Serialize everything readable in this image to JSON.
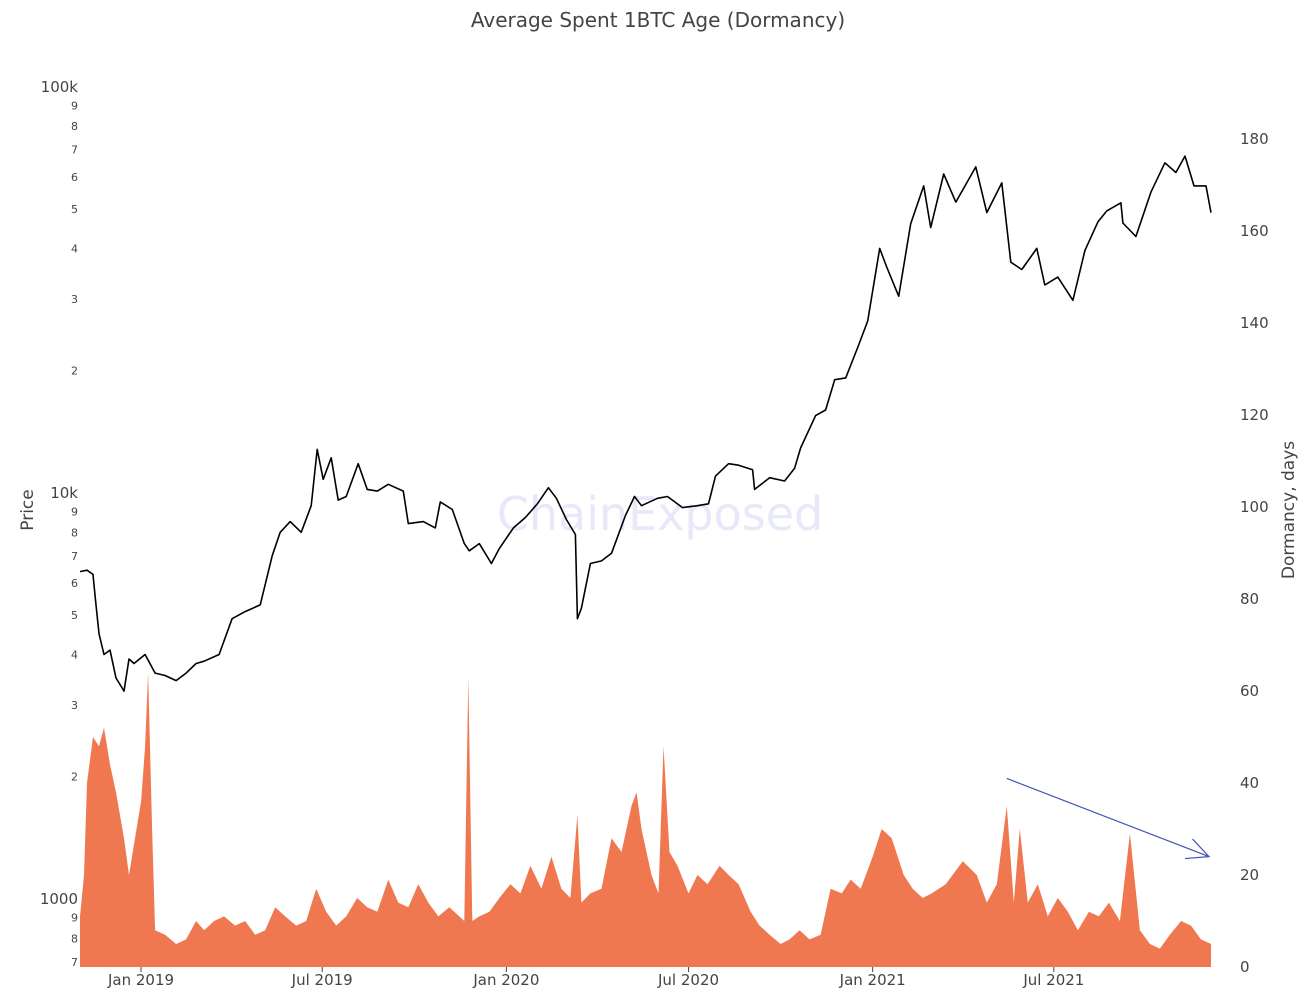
{
  "chart_data": {
    "type": "line",
    "title": "Average Spent 1BTC Age (Dormancy)",
    "watermark": "ChainExposed",
    "x_axis": {
      "ticks": [
        {
          "label": "Jan 2019",
          "date": "2019-01-01"
        },
        {
          "label": "Jul 2019",
          "date": "2019-07-01"
        },
        {
          "label": "Jan 2020",
          "date": "2020-01-01"
        },
        {
          "label": "Jul 2020",
          "date": "2020-07-01"
        },
        {
          "label": "Jan 2021",
          "date": "2021-01-01"
        },
        {
          "label": "Jul 2021",
          "date": "2021-07-01"
        }
      ],
      "range": [
        "2018-11-01",
        "2021-12-31"
      ]
    },
    "y_left": {
      "title": "Price",
      "scale": "log",
      "range": [
        680,
        110000
      ],
      "major_ticks": [
        {
          "label": "1000",
          "value": 1000
        },
        {
          "label": "10k",
          "value": 10000
        },
        {
          "label": "100k",
          "value": 100000
        }
      ],
      "minor_ticks": [
        {
          "label": "7",
          "value": 700
        },
        {
          "label": "8",
          "value": 800
        },
        {
          "label": "9",
          "value": 900
        },
        {
          "label": "2",
          "value": 2000
        },
        {
          "label": "3",
          "value": 3000
        },
        {
          "label": "4",
          "value": 4000
        },
        {
          "label": "5",
          "value": 5000
        },
        {
          "label": "6",
          "value": 6000
        },
        {
          "label": "7",
          "value": 7000
        },
        {
          "label": "8",
          "value": 8000
        },
        {
          "label": "9",
          "value": 9000
        },
        {
          "label": "2",
          "value": 20000
        },
        {
          "label": "3",
          "value": 30000
        },
        {
          "label": "4",
          "value": 40000
        },
        {
          "label": "5",
          "value": 50000
        },
        {
          "label": "6",
          "value": 60000
        },
        {
          "label": "7",
          "value": 70000
        },
        {
          "label": "8",
          "value": 80000
        },
        {
          "label": "9",
          "value": 90000
        }
      ]
    },
    "y_right": {
      "title": "Dormancy, days",
      "scale": "linear",
      "range": [
        0,
        195
      ],
      "ticks": [
        {
          "label": "0",
          "value": 0
        },
        {
          "label": "20",
          "value": 20
        },
        {
          "label": "40",
          "value": 40
        },
        {
          "label": "60",
          "value": 60
        },
        {
          "label": "80",
          "value": 80
        },
        {
          "label": "100",
          "value": 100
        },
        {
          "label": "120",
          "value": 120
        },
        {
          "label": "140",
          "value": 140
        },
        {
          "label": "160",
          "value": 160
        },
        {
          "label": "180",
          "value": 180
        }
      ]
    },
    "grid": false,
    "series": [
      {
        "type": "line",
        "axis": "left",
        "color": "#000000",
        "points": [
          [
            "2018-11-01",
            6400
          ],
          [
            "2018-11-08",
            6450
          ],
          [
            "2018-11-14",
            6300
          ],
          [
            "2018-11-16",
            5600
          ],
          [
            "2018-11-20",
            4500
          ],
          [
            "2018-11-25",
            4000
          ],
          [
            "2018-12-01",
            4100
          ],
          [
            "2018-12-07",
            3500
          ],
          [
            "2018-12-15",
            3250
          ],
          [
            "2018-12-20",
            3900
          ],
          [
            "2018-12-25",
            3800
          ],
          [
            "2019-01-05",
            4000
          ],
          [
            "2019-01-15",
            3600
          ],
          [
            "2019-01-25",
            3550
          ],
          [
            "2019-02-05",
            3450
          ],
          [
            "2019-02-15",
            3600
          ],
          [
            "2019-02-25",
            3800
          ],
          [
            "2019-03-05",
            3850
          ],
          [
            "2019-03-20",
            4000
          ],
          [
            "2019-04-02",
            4900
          ],
          [
            "2019-04-15",
            5100
          ],
          [
            "2019-04-30",
            5300
          ],
          [
            "2019-05-12",
            7000
          ],
          [
            "2019-05-20",
            8000
          ],
          [
            "2019-05-30",
            8500
          ],
          [
            "2019-06-10",
            8000
          ],
          [
            "2019-06-20",
            9300
          ],
          [
            "2019-06-26",
            12800
          ],
          [
            "2019-07-02",
            10800
          ],
          [
            "2019-07-10",
            12200
          ],
          [
            "2019-07-17",
            9600
          ],
          [
            "2019-07-25",
            9800
          ],
          [
            "2019-08-06",
            11800
          ],
          [
            "2019-08-15",
            10200
          ],
          [
            "2019-08-25",
            10100
          ],
          [
            "2019-09-05",
            10500
          ],
          [
            "2019-09-20",
            10100
          ],
          [
            "2019-09-25",
            8400
          ],
          [
            "2019-10-10",
            8500
          ],
          [
            "2019-10-22",
            8200
          ],
          [
            "2019-10-27",
            9500
          ],
          [
            "2019-11-08",
            9100
          ],
          [
            "2019-11-20",
            7500
          ],
          [
            "2019-11-25",
            7200
          ],
          [
            "2019-12-05",
            7500
          ],
          [
            "2019-12-17",
            6700
          ],
          [
            "2019-12-25",
            7300
          ],
          [
            "2020-01-08",
            8200
          ],
          [
            "2020-01-20",
            8700
          ],
          [
            "2020-02-01",
            9400
          ],
          [
            "2020-02-12",
            10300
          ],
          [
            "2020-02-20",
            9700
          ],
          [
            "2020-03-01",
            8600
          ],
          [
            "2020-03-10",
            7900
          ],
          [
            "2020-03-12",
            4900
          ],
          [
            "2020-03-16",
            5200
          ],
          [
            "2020-03-25",
            6700
          ],
          [
            "2020-04-05",
            6800
          ],
          [
            "2020-04-15",
            7100
          ],
          [
            "2020-04-29",
            8800
          ],
          [
            "2020-05-08",
            9800
          ],
          [
            "2020-05-15",
            9300
          ],
          [
            "2020-05-31",
            9700
          ],
          [
            "2020-06-10",
            9800
          ],
          [
            "2020-06-25",
            9200
          ],
          [
            "2020-07-10",
            9300
          ],
          [
            "2020-07-21",
            9400
          ],
          [
            "2020-07-28",
            11000
          ],
          [
            "2020-08-10",
            11800
          ],
          [
            "2020-08-20",
            11700
          ],
          [
            "2020-09-03",
            11400
          ],
          [
            "2020-09-05",
            10200
          ],
          [
            "2020-09-20",
            10900
          ],
          [
            "2020-10-05",
            10700
          ],
          [
            "2020-10-15",
            11500
          ],
          [
            "2020-10-21",
            12900
          ],
          [
            "2020-11-05",
            15500
          ],
          [
            "2020-11-15",
            16000
          ],
          [
            "2020-11-24",
            19000
          ],
          [
            "2020-12-05",
            19200
          ],
          [
            "2020-12-17",
            22800
          ],
          [
            "2020-12-27",
            26500
          ],
          [
            "2021-01-08",
            40000
          ],
          [
            "2021-01-15",
            36000
          ],
          [
            "2021-01-27",
            30500
          ],
          [
            "2021-02-08",
            46000
          ],
          [
            "2021-02-21",
            57000
          ],
          [
            "2021-02-28",
            45000
          ],
          [
            "2021-03-13",
            61000
          ],
          [
            "2021-03-25",
            52000
          ],
          [
            "2021-04-14",
            63500
          ],
          [
            "2021-04-25",
            49000
          ],
          [
            "2021-05-10",
            58000
          ],
          [
            "2021-05-19",
            37000
          ],
          [
            "2021-05-30",
            35500
          ],
          [
            "2021-06-14",
            40000
          ],
          [
            "2021-06-22",
            32500
          ],
          [
            "2021-07-05",
            34000
          ],
          [
            "2021-07-20",
            29800
          ],
          [
            "2021-08-01",
            39500
          ],
          [
            "2021-08-14",
            46500
          ],
          [
            "2021-08-23",
            49500
          ],
          [
            "2021-09-06",
            51800
          ],
          [
            "2021-09-08",
            46200
          ],
          [
            "2021-09-21",
            42800
          ],
          [
            "2021-10-06",
            55000
          ],
          [
            "2021-10-20",
            65000
          ],
          [
            "2021-10-31",
            61500
          ],
          [
            "2021-11-09",
            67500
          ],
          [
            "2021-11-18",
            57000
          ],
          [
            "2021-11-30",
            57000
          ],
          [
            "2021-12-05",
            49000
          ]
        ]
      },
      {
        "type": "area",
        "axis": "right",
        "color": "#f07850",
        "points": [
          [
            "2018-11-01",
            11
          ],
          [
            "2018-11-05",
            20
          ],
          [
            "2018-11-08",
            40
          ],
          [
            "2018-11-14",
            50
          ],
          [
            "2018-11-20",
            48
          ],
          [
            "2018-11-25",
            52
          ],
          [
            "2018-12-01",
            44
          ],
          [
            "2018-12-07",
            38
          ],
          [
            "2018-12-15",
            28
          ],
          [
            "2018-12-20",
            20
          ],
          [
            "2018-12-26",
            28
          ],
          [
            "2019-01-01",
            36
          ],
          [
            "2019-01-05",
            48
          ],
          [
            "2019-01-08",
            64
          ],
          [
            "2019-01-12",
            30
          ],
          [
            "2019-01-15",
            8
          ],
          [
            "2019-01-25",
            7
          ],
          [
            "2019-02-05",
            5
          ],
          [
            "2019-02-15",
            6
          ],
          [
            "2019-02-25",
            10
          ],
          [
            "2019-03-05",
            8
          ],
          [
            "2019-03-15",
            10
          ],
          [
            "2019-03-25",
            11
          ],
          [
            "2019-04-05",
            9
          ],
          [
            "2019-04-15",
            10
          ],
          [
            "2019-04-25",
            7
          ],
          [
            "2019-05-05",
            8
          ],
          [
            "2019-05-15",
            13
          ],
          [
            "2019-05-25",
            11
          ],
          [
            "2019-06-05",
            9
          ],
          [
            "2019-06-15",
            10
          ],
          [
            "2019-06-25",
            17
          ],
          [
            "2019-07-05",
            12
          ],
          [
            "2019-07-15",
            9
          ],
          [
            "2019-07-25",
            11
          ],
          [
            "2019-08-05",
            15
          ],
          [
            "2019-08-15",
            13
          ],
          [
            "2019-08-25",
            12
          ],
          [
            "2019-09-05",
            19
          ],
          [
            "2019-09-15",
            14
          ],
          [
            "2019-09-25",
            13
          ],
          [
            "2019-10-05",
            18
          ],
          [
            "2019-10-15",
            14
          ],
          [
            "2019-10-25",
            11
          ],
          [
            "2019-11-05",
            13
          ],
          [
            "2019-11-15",
            11
          ],
          [
            "2019-11-20",
            10
          ],
          [
            "2019-11-24",
            63
          ],
          [
            "2019-11-28",
            10
          ],
          [
            "2019-12-05",
            11
          ],
          [
            "2019-12-15",
            12
          ],
          [
            "2019-12-25",
            15
          ],
          [
            "2020-01-05",
            18
          ],
          [
            "2020-01-15",
            16
          ],
          [
            "2020-01-25",
            22
          ],
          [
            "2020-02-05",
            17
          ],
          [
            "2020-02-15",
            24
          ],
          [
            "2020-02-25",
            17
          ],
          [
            "2020-03-05",
            15
          ],
          [
            "2020-03-12",
            33
          ],
          [
            "2020-03-16",
            14
          ],
          [
            "2020-03-25",
            16
          ],
          [
            "2020-04-05",
            17
          ],
          [
            "2020-04-15",
            28
          ],
          [
            "2020-04-25",
            25
          ],
          [
            "2020-05-05",
            35
          ],
          [
            "2020-05-10",
            38
          ],
          [
            "2020-05-15",
            30
          ],
          [
            "2020-05-25",
            20
          ],
          [
            "2020-06-01",
            16
          ],
          [
            "2020-06-06",
            48
          ],
          [
            "2020-06-12",
            25
          ],
          [
            "2020-06-20",
            22
          ],
          [
            "2020-07-01",
            16
          ],
          [
            "2020-07-10",
            20
          ],
          [
            "2020-07-20",
            18
          ],
          [
            "2020-08-01",
            22
          ],
          [
            "2020-08-10",
            20
          ],
          [
            "2020-08-20",
            18
          ],
          [
            "2020-09-01",
            12
          ],
          [
            "2020-09-10",
            9
          ],
          [
            "2020-09-20",
            7
          ],
          [
            "2020-10-01",
            5
          ],
          [
            "2020-10-10",
            6
          ],
          [
            "2020-10-20",
            8
          ],
          [
            "2020-10-30",
            6
          ],
          [
            "2020-11-10",
            7
          ],
          [
            "2020-11-20",
            17
          ],
          [
            "2020-12-01",
            16
          ],
          [
            "2020-12-10",
            19
          ],
          [
            "2020-12-20",
            17
          ],
          [
            "2021-01-01",
            24
          ],
          [
            "2021-01-10",
            30
          ],
          [
            "2021-01-20",
            28
          ],
          [
            "2021-02-01",
            20
          ],
          [
            "2021-02-10",
            17
          ],
          [
            "2021-02-20",
            15
          ],
          [
            "2021-03-01",
            16
          ],
          [
            "2021-03-15",
            18
          ],
          [
            "2021-04-01",
            23
          ],
          [
            "2021-04-15",
            20
          ],
          [
            "2021-04-25",
            14
          ],
          [
            "2021-05-05",
            18
          ],
          [
            "2021-05-15",
            35
          ],
          [
            "2021-05-22",
            14
          ],
          [
            "2021-05-28",
            30
          ],
          [
            "2021-06-05",
            14
          ],
          [
            "2021-06-15",
            18
          ],
          [
            "2021-06-25",
            11
          ],
          [
            "2021-07-05",
            15
          ],
          [
            "2021-07-15",
            12
          ],
          [
            "2021-07-25",
            8
          ],
          [
            "2021-08-05",
            12
          ],
          [
            "2021-08-15",
            11
          ],
          [
            "2021-08-25",
            14
          ],
          [
            "2021-09-05",
            10
          ],
          [
            "2021-09-15",
            29
          ],
          [
            "2021-09-25",
            8
          ],
          [
            "2021-10-05",
            5
          ],
          [
            "2021-10-15",
            4
          ],
          [
            "2021-10-25",
            7
          ],
          [
            "2021-11-05",
            10
          ],
          [
            "2021-11-15",
            9
          ],
          [
            "2021-11-25",
            6
          ],
          [
            "2021-12-05",
            5
          ]
        ]
      }
    ],
    "annotations": [
      {
        "type": "arrow",
        "axis": "right",
        "color": "#3f51b5",
        "from": [
          "2021-05-15",
          41
        ],
        "to": [
          "2021-12-03",
          24
        ]
      }
    ]
  }
}
